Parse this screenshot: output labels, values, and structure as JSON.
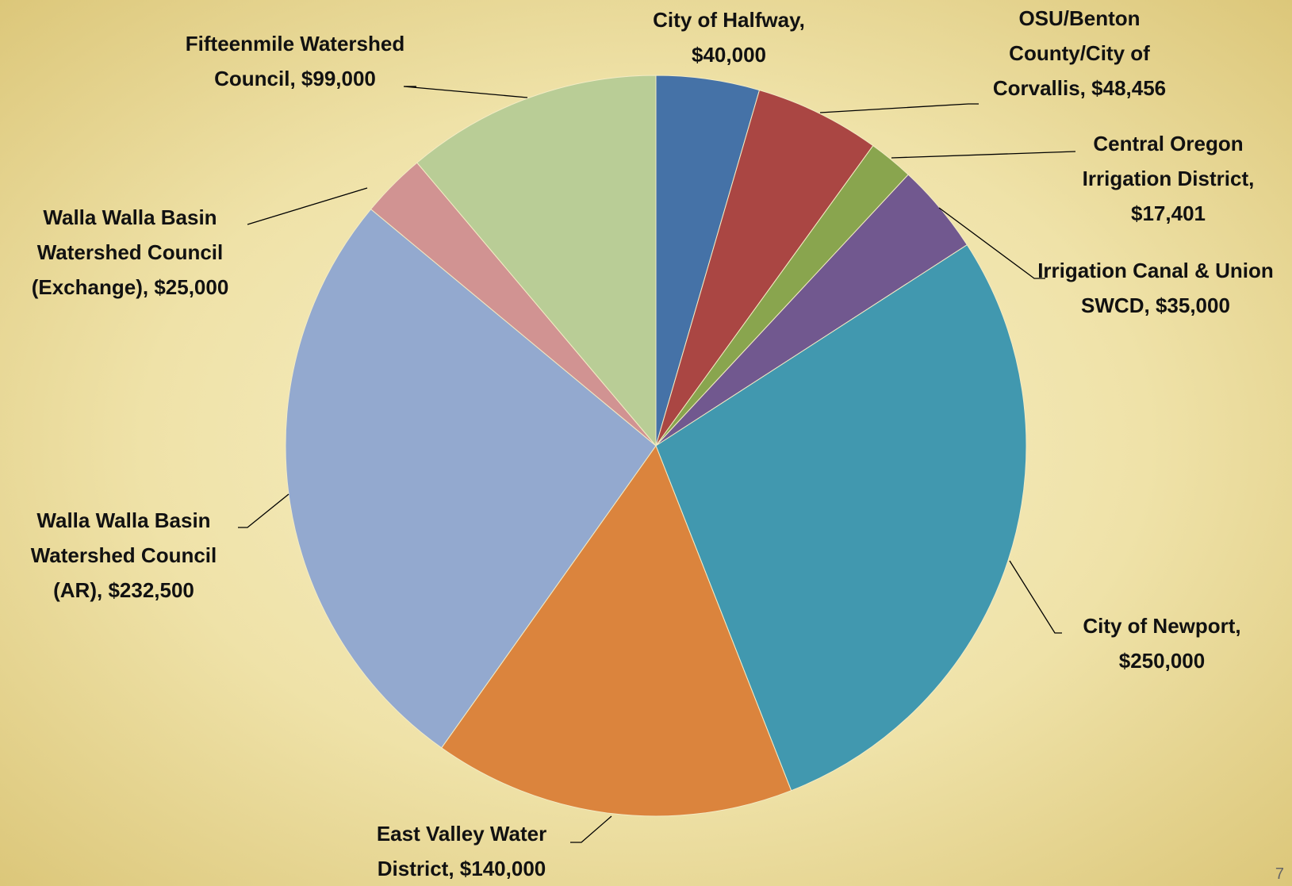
{
  "chart_data": {
    "type": "pie",
    "categories": [
      "City of Halfway,",
      "OSU/Benton County/City of Corvallis,",
      "Central Oregon Irrigation District,",
      "Irrigation Canal & Union SWCD,",
      "City of Newport,",
      "East Valley Water District,",
      "Walla Walla Basin Watershed Council (AR),",
      "Walla Walla Basin Watershed Council (Exchange),",
      "Fifteenmile Watershed Council,"
    ],
    "values": [
      40000,
      48456,
      17401,
      35000,
      250000,
      140000,
      232500,
      25000,
      99000
    ],
    "value_labels": [
      "$40,000",
      "$48,456",
      "$17,401",
      "$35,000",
      "$250,000",
      "$140,000",
      "$232,500",
      "$25,000",
      "$99,000"
    ],
    "colors": [
      "#4572a7",
      "#aa4643",
      "#89a54e",
      "#71588f",
      "#4198af",
      "#db843d",
      "#93a9cf",
      "#d19392",
      "#b9cd96"
    ],
    "page_number": "7"
  }
}
